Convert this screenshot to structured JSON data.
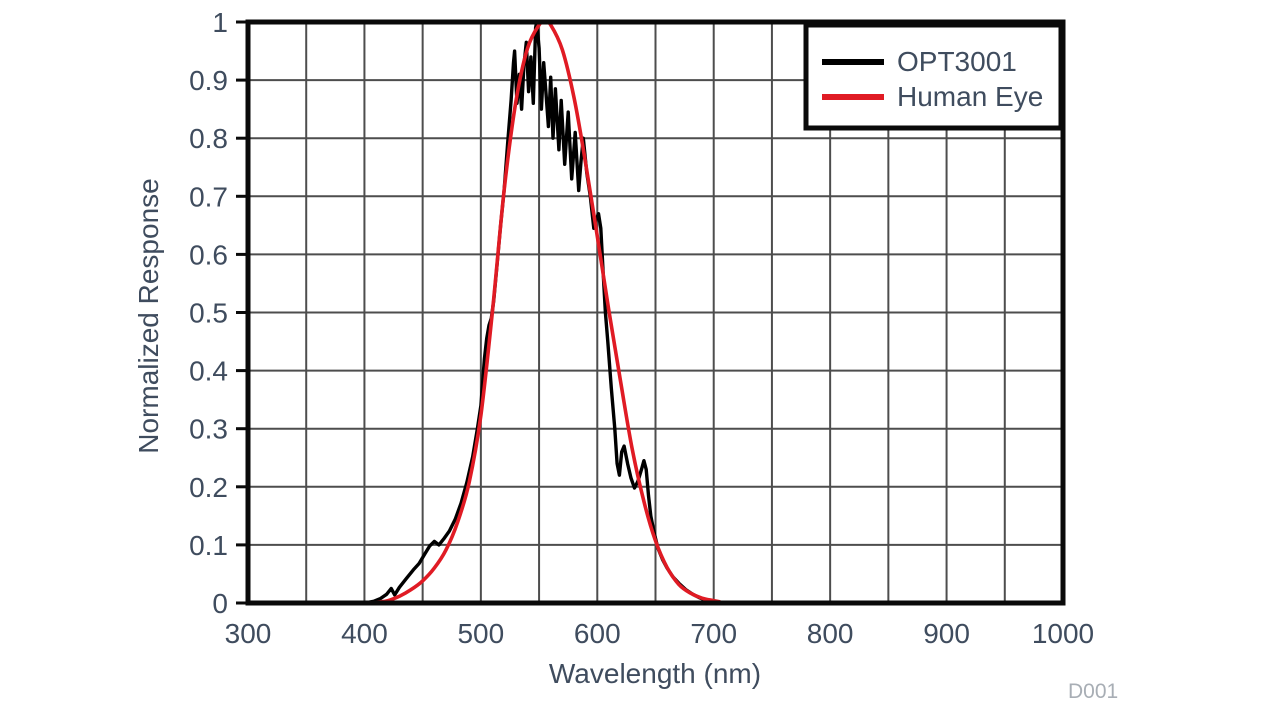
{
  "figure": {
    "footer_code": "D001",
    "colors": {
      "background": "#ffffff",
      "text": "#3f4c5e",
      "grid": "#4d4d4d",
      "border": "#0a0a0a",
      "opt3001": "#000000",
      "human_eye": "#e01b24",
      "watermark": "#a8aeb5",
      "legend_fill": "#ffffff"
    }
  },
  "chart_data": {
    "type": "line",
    "title": "",
    "xlabel": "Wavelength (nm)",
    "ylabel": "Normalized Response",
    "xlim": [
      300,
      1000
    ],
    "ylim": [
      0,
      1
    ],
    "x_major_ticks": [
      300,
      400,
      500,
      600,
      700,
      800,
      900,
      1000
    ],
    "x_tick_labels": [
      "300",
      "400",
      "500",
      "600",
      "700",
      "800",
      "900",
      "1000"
    ],
    "y_major_ticks": [
      0,
      0.1,
      0.2,
      0.3,
      0.4,
      0.5,
      0.6,
      0.7,
      0.8,
      0.9,
      1
    ],
    "y_tick_labels": [
      "0",
      "0.1",
      "0.2",
      "0.3",
      "0.4",
      "0.5",
      "0.6",
      "0.7",
      "0.8",
      "0.9",
      "1"
    ],
    "x_grid_step": 50,
    "y_grid_step": 0.1,
    "grid": true,
    "legend_position": "top-right",
    "series": [
      {
        "name": "OPT3001",
        "color": "#000000",
        "smooth": false,
        "points": [
          [
            400,
            0
          ],
          [
            408,
            0.003
          ],
          [
            414,
            0.008
          ],
          [
            419,
            0.015
          ],
          [
            423,
            0.025
          ],
          [
            426,
            0.014
          ],
          [
            430,
            0.027
          ],
          [
            436,
            0.042
          ],
          [
            442,
            0.057
          ],
          [
            447,
            0.068
          ],
          [
            452,
            0.085
          ],
          [
            456,
            0.098
          ],
          [
            460,
            0.106
          ],
          [
            464,
            0.1
          ],
          [
            468,
            0.11
          ],
          [
            473,
            0.124
          ],
          [
            478,
            0.144
          ],
          [
            483,
            0.172
          ],
          [
            488,
            0.208
          ],
          [
            493,
            0.252
          ],
          [
            497,
            0.3
          ],
          [
            500,
            0.34
          ],
          [
            503,
            0.42
          ],
          [
            505,
            0.455
          ],
          [
            507,
            0.478
          ],
          [
            509,
            0.49
          ],
          [
            511,
            0.52
          ],
          [
            514,
            0.585
          ],
          [
            517,
            0.65
          ],
          [
            520,
            0.71
          ],
          [
            523,
            0.79
          ],
          [
            526,
            0.865
          ],
          [
            528,
            0.93
          ],
          [
            529,
            0.95
          ],
          [
            531,
            0.86
          ],
          [
            533,
            0.91
          ],
          [
            535,
            0.85
          ],
          [
            537,
            0.925
          ],
          [
            539,
            0.965
          ],
          [
            541,
            0.88
          ],
          [
            543,
            0.94
          ],
          [
            545,
            0.86
          ],
          [
            547,
            0.99
          ],
          [
            548,
            1.0
          ],
          [
            550,
            0.955
          ],
          [
            552,
            0.85
          ],
          [
            554,
            0.93
          ],
          [
            556,
            0.875
          ],
          [
            558,
            0.82
          ],
          [
            560,
            0.905
          ],
          [
            562,
            0.8
          ],
          [
            564,
            0.885
          ],
          [
            567,
            0.78
          ],
          [
            569,
            0.865
          ],
          [
            572,
            0.755
          ],
          [
            575,
            0.845
          ],
          [
            578,
            0.73
          ],
          [
            581,
            0.81
          ],
          [
            584,
            0.71
          ],
          [
            586,
            0.76
          ],
          [
            588,
            0.8
          ],
          [
            591,
            0.74
          ],
          [
            594,
            0.7
          ],
          [
            597,
            0.645
          ],
          [
            599,
            0.66
          ],
          [
            601,
            0.67
          ],
          [
            603,
            0.645
          ],
          [
            605,
            0.57
          ],
          [
            607,
            0.5
          ],
          [
            609,
            0.45
          ],
          [
            612,
            0.37
          ],
          [
            615,
            0.3
          ],
          [
            617,
            0.24
          ],
          [
            619,
            0.22
          ],
          [
            621,
            0.26
          ],
          [
            623,
            0.27
          ],
          [
            626,
            0.24
          ],
          [
            629,
            0.215
          ],
          [
            632,
            0.198
          ],
          [
            635,
            0.21
          ],
          [
            638,
            0.23
          ],
          [
            640,
            0.245
          ],
          [
            642,
            0.23
          ],
          [
            644,
            0.185
          ],
          [
            646,
            0.15
          ],
          [
            649,
            0.12
          ],
          [
            652,
            0.095
          ],
          [
            656,
            0.075
          ],
          [
            660,
            0.06
          ],
          [
            665,
            0.045
          ],
          [
            670,
            0.034
          ],
          [
            676,
            0.023
          ],
          [
            682,
            0.015
          ],
          [
            688,
            0.009
          ],
          [
            694,
            0.004
          ],
          [
            700,
            0.001
          ],
          [
            704,
            0
          ]
        ]
      },
      {
        "name": "Human Eye",
        "color": "#e01b24",
        "smooth": true,
        "points": [
          [
            400,
            0.0004
          ],
          [
            410,
            0.0012
          ],
          [
            420,
            0.004
          ],
          [
            430,
            0.0116
          ],
          [
            440,
            0.023
          ],
          [
            450,
            0.038
          ],
          [
            460,
            0.06
          ],
          [
            470,
            0.091
          ],
          [
            480,
            0.139
          ],
          [
            490,
            0.208
          ],
          [
            500,
            0.323
          ],
          [
            510,
            0.503
          ],
          [
            520,
            0.71
          ],
          [
            530,
            0.862
          ],
          [
            540,
            0.954
          ],
          [
            550,
            0.995
          ],
          [
            555,
            1.0
          ],
          [
            560,
            0.995
          ],
          [
            570,
            0.952
          ],
          [
            580,
            0.87
          ],
          [
            590,
            0.757
          ],
          [
            600,
            0.631
          ],
          [
            610,
            0.503
          ],
          [
            620,
            0.381
          ],
          [
            630,
            0.265
          ],
          [
            640,
            0.175
          ],
          [
            650,
            0.107
          ],
          [
            660,
            0.061
          ],
          [
            670,
            0.032
          ],
          [
            680,
            0.017
          ],
          [
            690,
            0.0082
          ],
          [
            700,
            0.0041
          ],
          [
            705,
            0.002
          ]
        ]
      }
    ]
  }
}
